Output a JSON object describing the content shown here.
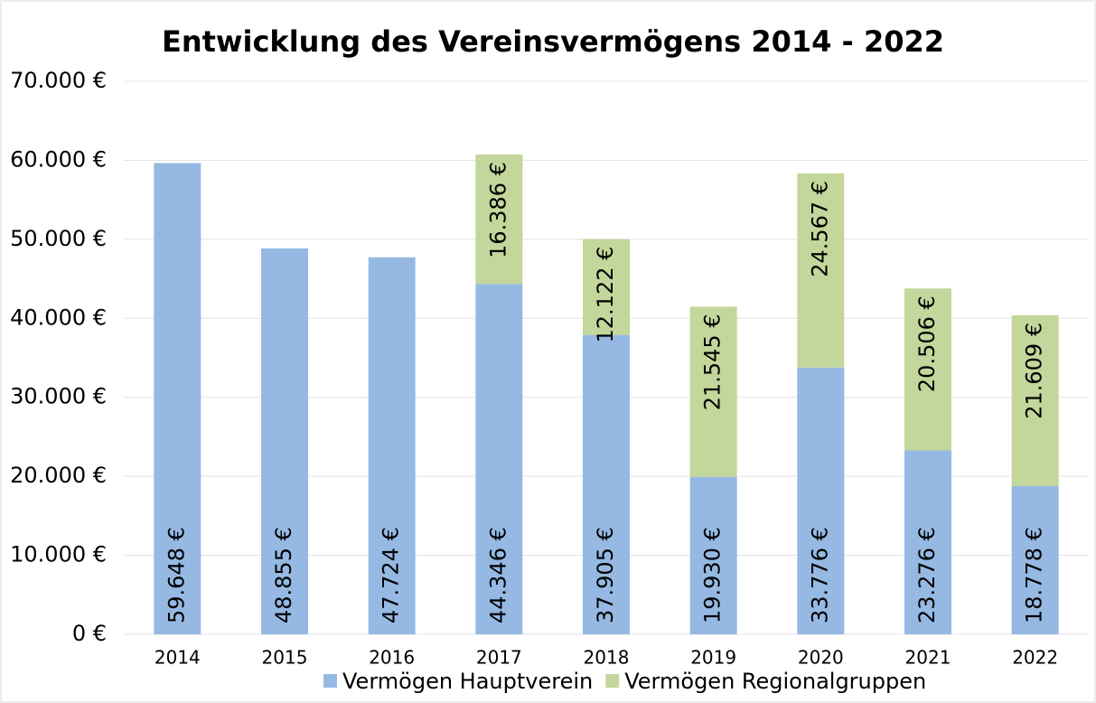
{
  "chart_data": {
    "type": "stacked_bar",
    "title": "Entwicklung des Vereinsvermögens 2014 - 2022",
    "categories": [
      "2014",
      "2015",
      "2016",
      "2017",
      "2018",
      "2019",
      "2020",
      "2021",
      "2022"
    ],
    "series": [
      {
        "name": "Vermögen Hauptverein",
        "color": "#95b9e3",
        "values": [
          59648,
          48855,
          47724,
          44346,
          37905,
          19930,
          33776,
          23276,
          18778
        ],
        "value_labels": [
          "59.648 €",
          "48.855 €",
          "47.724 €",
          "44.346 €",
          "37.905 €",
          "19.930 €",
          "33.776 €",
          "23.276 €",
          "18.778 €"
        ]
      },
      {
        "name": "Vermögen Regionalgruppen",
        "color": "#c3d69b",
        "values": [
          null,
          null,
          null,
          16386,
          12122,
          21545,
          24567,
          20506,
          21609
        ],
        "value_labels": [
          null,
          null,
          null,
          "16.386 €",
          "12.122 €",
          "21.545 €",
          "24.567 €",
          "20.506 €",
          "21.609 €"
        ]
      }
    ],
    "ylim": [
      0,
      70000
    ],
    "yticks": [
      {
        "value": 0,
        "label": "0 €"
      },
      {
        "value": 10000,
        "label": "10.000 €"
      },
      {
        "value": 20000,
        "label": "20.000 €"
      },
      {
        "value": 30000,
        "label": "30.000 €"
      },
      {
        "value": 40000,
        "label": "40.000 €"
      },
      {
        "value": 50000,
        "label": "50.000 €"
      },
      {
        "value": 60000,
        "label": "60.000 €"
      },
      {
        "value": 70000,
        "label": "70.000 €"
      }
    ],
    "grid": true,
    "legend": "bottom"
  }
}
